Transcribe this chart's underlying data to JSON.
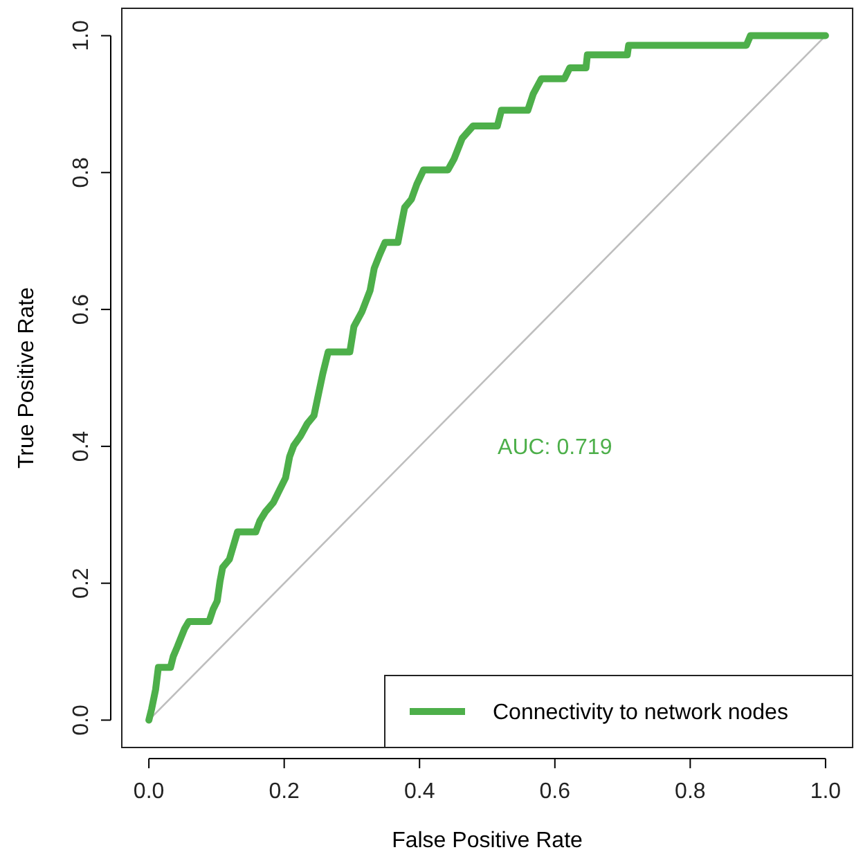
{
  "chart_data": {
    "type": "line",
    "xlabel": "False Positive Rate",
    "ylabel": "True Positive Rate",
    "xlim": [
      -0.04,
      1.04
    ],
    "ylim": [
      -0.04,
      1.04
    ],
    "xticks": [
      {
        "value": 0,
        "label": "0.0"
      },
      0.2,
      0.4,
      0.6,
      0.8,
      {
        "value": 1,
        "label": "1.0"
      }
    ],
    "yticks": [
      {
        "value": 0,
        "label": "0.0"
      },
      0.2,
      0.4,
      0.6,
      0.8,
      {
        "value": 1,
        "label": "1.0"
      }
    ],
    "grid": false,
    "legend": "bottom right",
    "line_style": "solid",
    "marker": "none",
    "annotations": [
      "AUC: 0.719"
    ],
    "series": [
      {
        "color": "#bebebe",
        "x": [
          0,
          1
        ],
        "values": [
          0,
          1
        ]
      },
      {
        "name": "Connectivity to network nodes",
        "color": "#4daf4a",
        "x": [
          0,
          0.004,
          0.01,
          0.014,
          0.032,
          0.036,
          0.042,
          0.046,
          0.053,
          0.059,
          0.089,
          0.095,
          0.101,
          0.105,
          0.109,
          0.119,
          0.131,
          0.158,
          0.164,
          0.172,
          0.184,
          0.192,
          0.202,
          0.208,
          0.214,
          0.224,
          0.234,
          0.244,
          0.251,
          0.257,
          0.265,
          0.297,
          0.303,
          0.315,
          0.327,
          0.333,
          0.341,
          0.349,
          0.368,
          0.374,
          0.378,
          0.388,
          0.396,
          0.406,
          0.442,
          0.451,
          0.463,
          0.479,
          0.515,
          0.521,
          0.56,
          0.568,
          0.58,
          0.614,
          0.622,
          0.646,
          0.648,
          0.707,
          0.709,
          0.883,
          0.889,
          1
        ],
        "values": [
          0,
          0.016,
          0.045,
          0.077,
          0.077,
          0.093,
          0.107,
          0.117,
          0.134,
          0.144,
          0.144,
          0.162,
          0.174,
          0.202,
          0.223,
          0.235,
          0.275,
          0.275,
          0.291,
          0.304,
          0.318,
          0.334,
          0.354,
          0.385,
          0.401,
          0.415,
          0.433,
          0.445,
          0.478,
          0.506,
          0.538,
          0.538,
          0.575,
          0.597,
          0.628,
          0.66,
          0.68,
          0.698,
          0.698,
          0.729,
          0.749,
          0.761,
          0.783,
          0.804,
          0.804,
          0.82,
          0.85,
          0.868,
          0.868,
          0.891,
          0.891,
          0.915,
          0.937,
          0.937,
          0.953,
          0.953,
          0.972,
          0.972,
          0.986,
          0.986,
          1,
          1
        ]
      }
    ]
  }
}
